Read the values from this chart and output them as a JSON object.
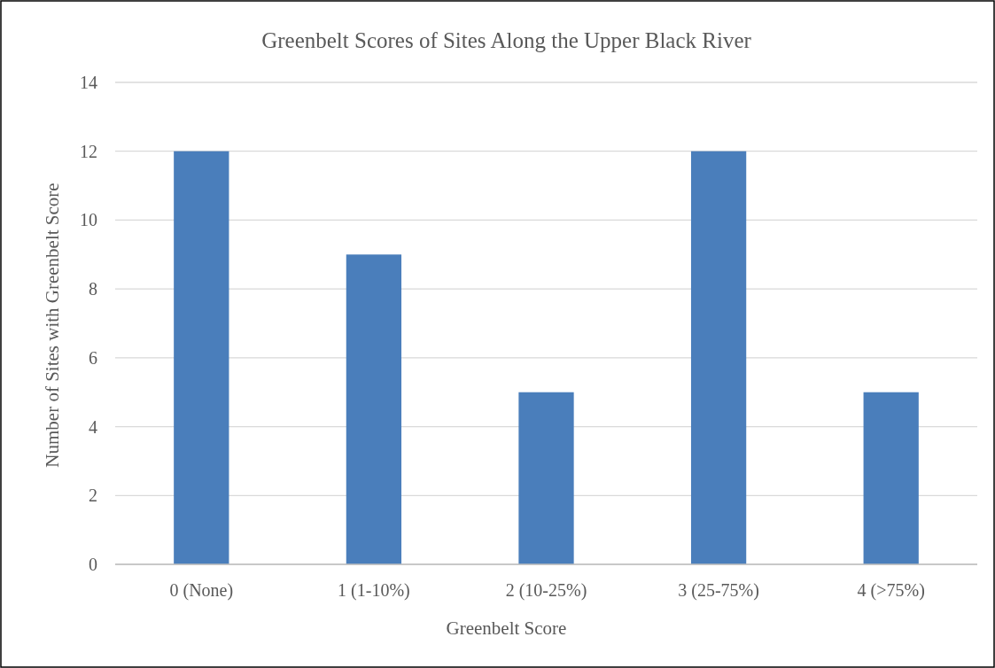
{
  "chart_data": {
    "type": "bar",
    "title": "Greenbelt Scores of Sites Along the Upper Black River",
    "xlabel": "Greenbelt Score",
    "ylabel": "Number of Sites with Greenbelt Score",
    "categories": [
      "0 (None)",
      "1 (1-10%)",
      "2 (10-25%)",
      "3 (25-75%)",
      "4 (>75%)"
    ],
    "values": [
      12,
      9,
      5,
      12,
      5
    ],
    "color": "#4a7ebb",
    "ylim": [
      0,
      14
    ],
    "yticks": [
      0,
      2,
      4,
      6,
      8,
      10,
      12,
      14
    ],
    "grid": "y"
  }
}
